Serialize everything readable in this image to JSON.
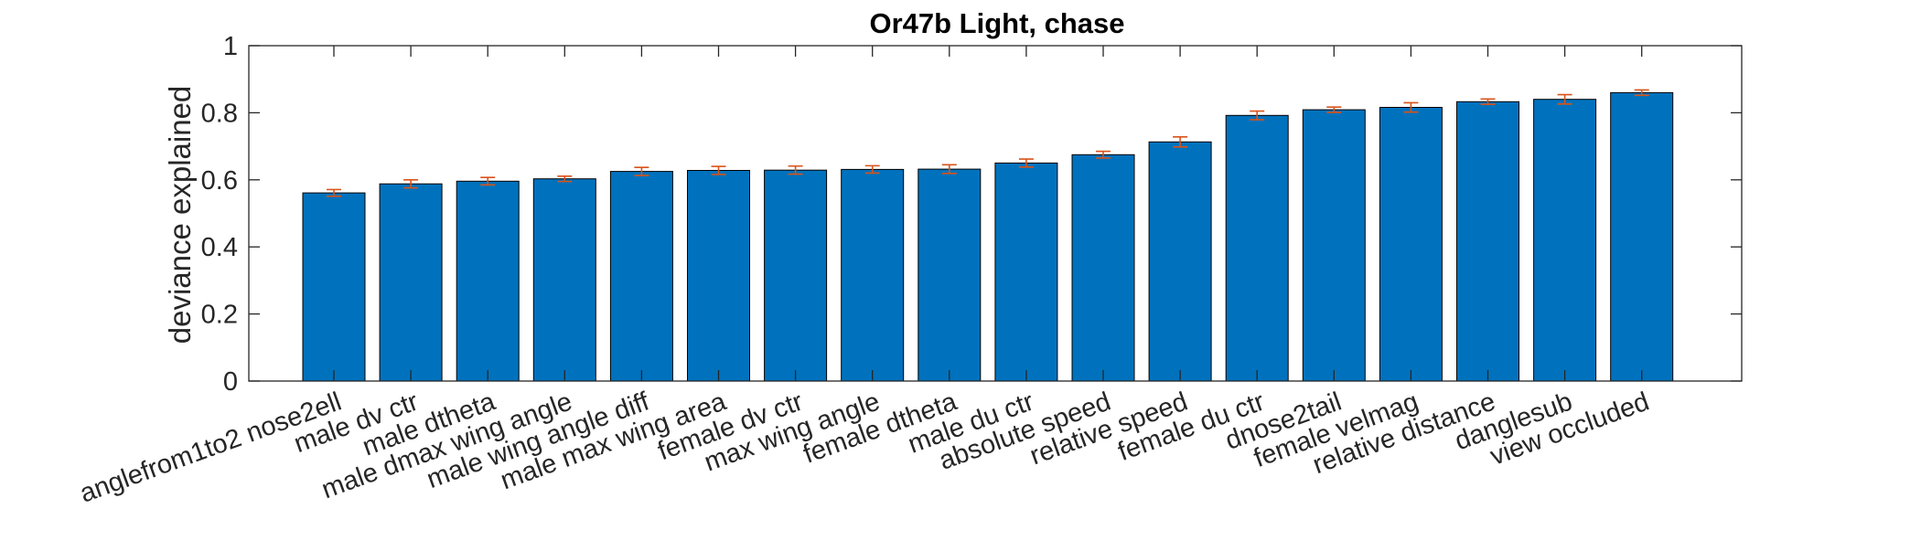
{
  "chart_data": {
    "type": "bar",
    "title": "Or47b Light, chase",
    "xlabel": "",
    "ylabel": "deviance explained",
    "ylim": [
      0,
      1
    ],
    "yticks": [
      0,
      0.2,
      0.4,
      0.6,
      0.8,
      1
    ],
    "ytick_labels": [
      "0",
      "0.2",
      "0.4",
      "0.6",
      "0.8",
      "1"
    ],
    "grid": false,
    "categories": [
      "anglefrom1to2 nose2ell",
      "male dv ctr",
      "male dtheta",
      "male dmax wing angle",
      "male wing angle diff",
      "male max wing area",
      "female dv ctr",
      "max wing angle",
      "female dtheta",
      "male du ctr",
      "absolute speed",
      "relative speed",
      "female du ctr",
      "dnose2tail",
      "female velmag",
      "relative distance",
      "danglesub",
      "view occluded"
    ],
    "values": [
      0.561,
      0.588,
      0.596,
      0.603,
      0.625,
      0.628,
      0.629,
      0.631,
      0.632,
      0.65,
      0.675,
      0.713,
      0.792,
      0.809,
      0.816,
      0.833,
      0.84,
      0.86
    ],
    "errors": [
      0.01,
      0.012,
      0.011,
      0.008,
      0.012,
      0.012,
      0.012,
      0.011,
      0.013,
      0.012,
      0.01,
      0.015,
      0.013,
      0.008,
      0.014,
      0.008,
      0.014,
      0.008
    ],
    "bar_color": "#0072BD",
    "errorbar_color": "#D95319"
  }
}
